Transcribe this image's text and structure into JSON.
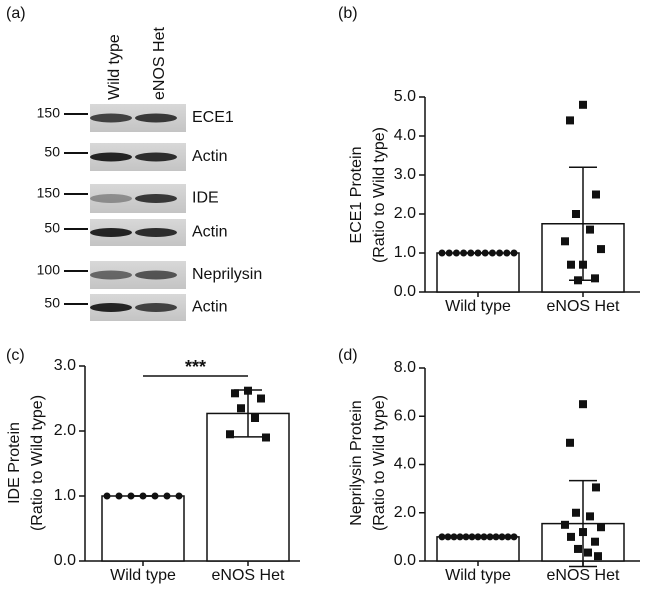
{
  "blot": {
    "panel": "(a)",
    "lanes": [
      "Wild type",
      "eNOS Het"
    ],
    "rows": [
      {
        "marker": "150",
        "label": "ECE1"
      },
      {
        "marker": "50",
        "label": "Actin"
      },
      {
        "marker": "150",
        "label": "IDE"
      },
      {
        "marker": "50",
        "label": "Actin"
      },
      {
        "marker": "100",
        "label": "Neprilysin"
      },
      {
        "marker": "50",
        "label": "Actin"
      }
    ]
  },
  "chart_data": [
    {
      "type": "bar",
      "panel": "(b)",
      "ylabel": [
        "ECE1 Protein",
        "(Ratio to Wild type)"
      ],
      "categories": [
        "Wild type",
        "eNOS Het"
      ],
      "values": [
        1.0,
        1.75
      ],
      "errors": [
        0,
        1.45
      ],
      "points": [
        [
          1,
          1,
          1,
          1,
          1,
          1,
          1,
          1,
          1,
          1,
          1
        ],
        [
          4.8,
          4.4,
          2.5,
          2.0,
          1.6,
          1.3,
          1.1,
          0.7,
          0.7,
          0.35,
          0.3
        ]
      ],
      "markers": [
        "circle",
        "square"
      ],
      "color": "#ffffff",
      "ylim": [
        0,
        5
      ],
      "yticks": [
        {
          "value": 0,
          "label": "0.0"
        },
        {
          "value": 1,
          "label": "1.0"
        },
        {
          "value": 2,
          "label": "2.0"
        },
        {
          "value": 3,
          "label": "3.0"
        },
        {
          "value": 4,
          "label": "4.0"
        },
        {
          "value": 5,
          "label": "5.0"
        }
      ]
    },
    {
      "type": "bar",
      "panel": "(c)",
      "ylabel": [
        "IDE Protein",
        "(Ratio to Wild type)"
      ],
      "categories": [
        "Wild type",
        "eNOS Het"
      ],
      "values": [
        1.0,
        2.27
      ],
      "errors": [
        0,
        0.36
      ],
      "points": [
        [
          1,
          1,
          1,
          1,
          1,
          1,
          1
        ],
        [
          2.62,
          2.58,
          2.5,
          2.35,
          2.2,
          1.95,
          1.9
        ]
      ],
      "markers": [
        "circle",
        "square"
      ],
      "color": "#ffffff",
      "annotation": "***",
      "ylim": [
        0,
        3
      ],
      "yticks": [
        {
          "value": 0,
          "label": "0.0"
        },
        {
          "value": 1,
          "label": "1.0"
        },
        {
          "value": 2,
          "label": "2.0"
        },
        {
          "value": 3,
          "label": "3.0"
        }
      ]
    },
    {
      "type": "bar",
      "panel": "(d)",
      "ylabel": [
        "Neprilysin Protein",
        "(Ratio to Wild type)"
      ],
      "categories": [
        "Wild type",
        "eNOS Het"
      ],
      "values": [
        1.0,
        1.55
      ],
      "errors": [
        0,
        1.78
      ],
      "points": [
        [
          1,
          1,
          1,
          1,
          1,
          1,
          1,
          1,
          1,
          1,
          1,
          1,
          1
        ],
        [
          6.5,
          4.9,
          3.05,
          2.0,
          1.85,
          1.5,
          1.4,
          1.2,
          1.0,
          0.8,
          0.5,
          0.35,
          0.2
        ]
      ],
      "markers": [
        "circle",
        "square"
      ],
      "color": "#ffffff",
      "ylim": [
        0,
        8
      ],
      "yticks": [
        {
          "value": 0,
          "label": "0.0"
        },
        {
          "value": 2,
          "label": "2.0"
        },
        {
          "value": 4,
          "label": "4.0"
        },
        {
          "value": 6,
          "label": "6.0"
        },
        {
          "value": 8,
          "label": "8.0"
        }
      ]
    }
  ]
}
